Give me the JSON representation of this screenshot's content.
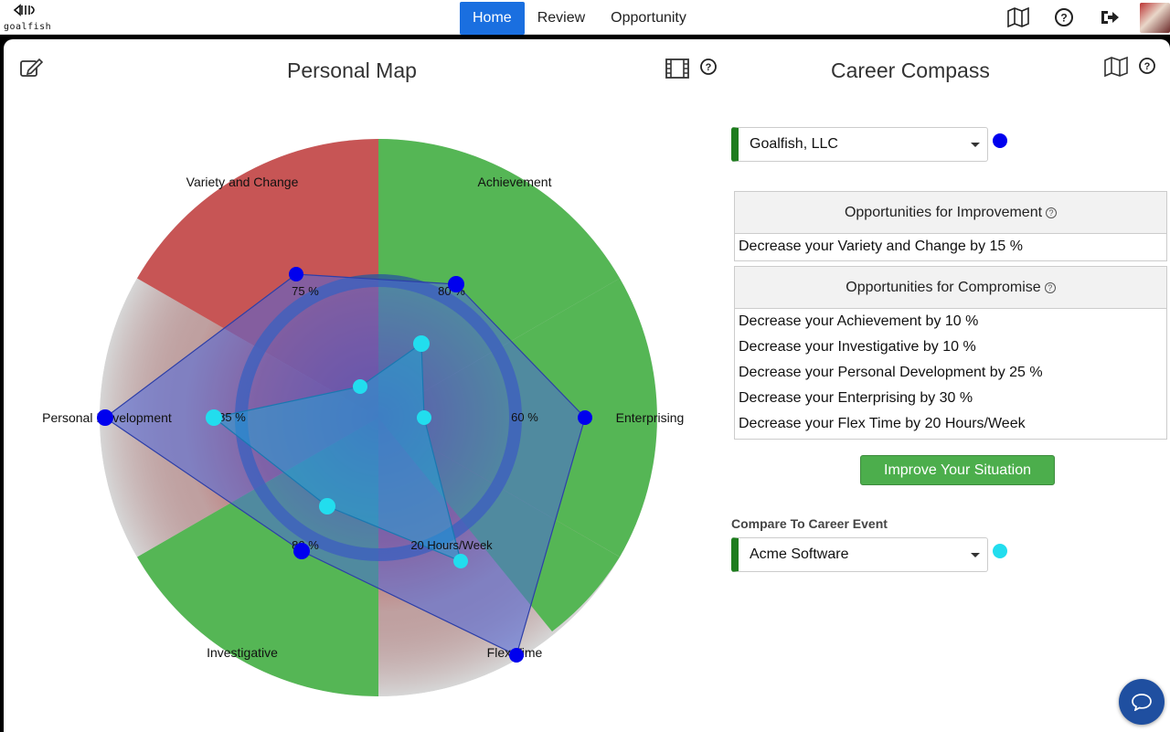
{
  "app": {
    "logo_text": "goalfish"
  },
  "nav": {
    "items": [
      "Home",
      "Review",
      "Opportunity"
    ],
    "active": "Home"
  },
  "top_icons": [
    "map-icon",
    "help-icon",
    "logout-icon",
    "avatar"
  ],
  "personal_map": {
    "title": "Personal Map",
    "axes": [
      "Achievement",
      "Enterprising",
      "Flex Time",
      "Investigative",
      "Personal Development",
      "Variety and Change"
    ],
    "value_labels": [
      "80 %",
      "60 %",
      "20 Hours/Week",
      "80 %",
      "85 %",
      "75 %"
    ]
  },
  "career_compass": {
    "title": "Career Compass",
    "company_select": "Goalfish, LLC",
    "improvement": {
      "title": "Opportunities for Improvement",
      "items": [
        "Decrease your Variety and Change by 15 %"
      ]
    },
    "compromise": {
      "title": "Opportunities for Compromise",
      "items": [
        "Decrease your Achievement by 10 %",
        "Decrease your Investigative by 10 %",
        "Decrease your Personal Development by 25 %",
        "Decrease your Enterprising by 30 %",
        "Decrease your Flex Time by 20 Hours/Week"
      ]
    },
    "improve_button": "Improve Your Situation",
    "compare_label": "Compare To Career Event",
    "compare_select": "Acme Software"
  },
  "colors": {
    "primary_series": "#0000ee",
    "compare_series": "#22ddee",
    "green": "#55b655",
    "red": "#c75555",
    "nav_active": "#1a6fe0"
  }
}
